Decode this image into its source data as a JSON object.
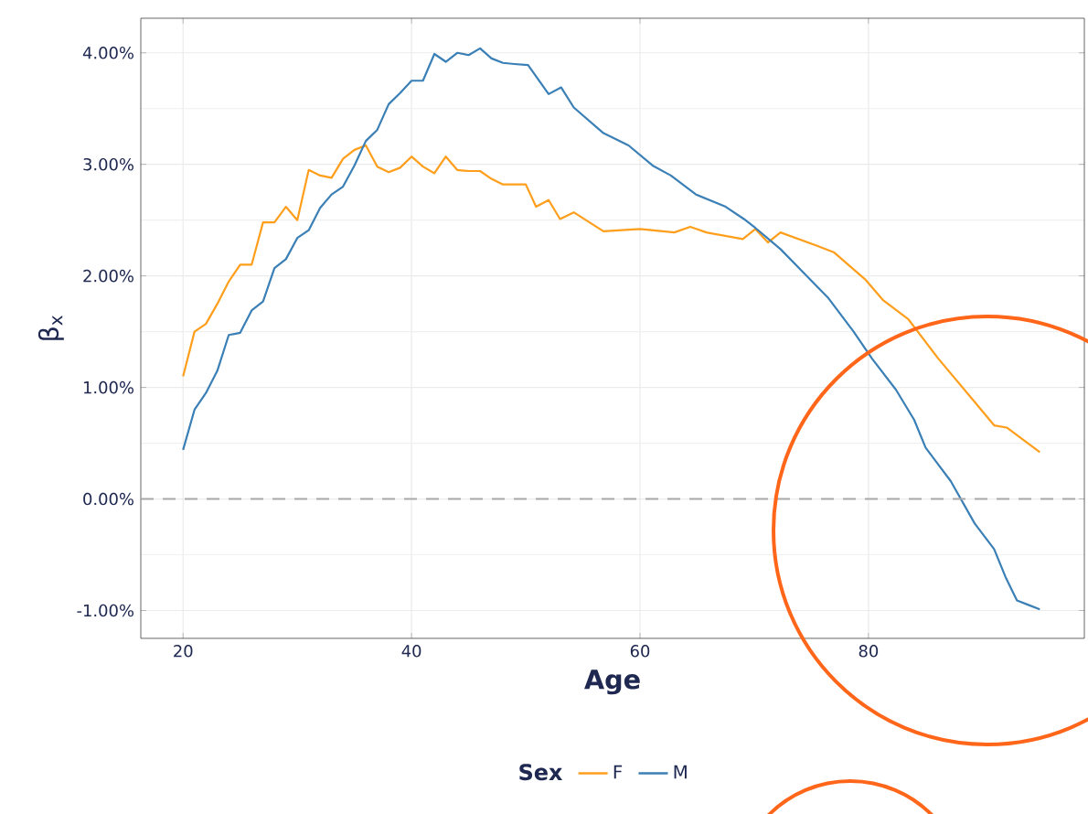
{
  "chart_data": {
    "type": "line",
    "xlabel": "Age",
    "ylabel": "β$_{x}$",
    "legend_title": "Sex",
    "xlim": [
      16.3,
      98.9
    ],
    "ylim": [
      -1.25,
      4.31
    ],
    "xticks": [
      20,
      40,
      60,
      80
    ],
    "yticks": [
      {
        "value": -1,
        "label": "-1.00%"
      },
      {
        "value": 0,
        "label": "0.00%"
      },
      {
        "value": 1,
        "label": "1.00%"
      },
      {
        "value": 2,
        "label": "2.00%"
      },
      {
        "value": 3,
        "label": "3.00%"
      },
      {
        "value": 4,
        "label": "4.00%"
      }
    ],
    "grid": true,
    "legend": "bottom",
    "line_style": "solid",
    "marker": "none",
    "ref_lines": [
      {
        "axis": "y",
        "value": 0,
        "color": "#a9a9a9",
        "line_style": "dashed"
      }
    ],
    "series": [
      {
        "name": "F",
        "color": "#ff9e1b",
        "x": [
          20,
          21,
          22,
          23,
          24,
          25,
          26,
          27,
          28,
          29,
          30,
          31,
          32,
          33,
          34,
          35,
          36,
          37,
          38,
          39,
          40,
          41,
          42,
          43,
          44,
          45,
          46,
          47,
          48,
          49,
          50,
          50.9,
          52,
          53,
          54.2,
          56.8,
          60,
          63,
          64.4,
          65.8,
          69,
          70.1,
          71.2,
          72.3,
          75.5,
          77,
          79.7,
          81.3,
          83.5,
          86.1,
          89.3,
          91,
          92.1,
          95
        ],
        "values": [
          1.1,
          1.5,
          1.57,
          1.75,
          1.95,
          2.1,
          2.1,
          2.48,
          2.48,
          2.62,
          2.5,
          2.95,
          2.9,
          2.88,
          3.05,
          3.13,
          3.17,
          2.98,
          2.93,
          2.97,
          3.07,
          2.98,
          2.92,
          3.07,
          2.95,
          2.94,
          2.94,
          2.87,
          2.82,
          2.82,
          2.82,
          2.62,
          2.68,
          2.51,
          2.57,
          2.4,
          2.42,
          2.39,
          2.44,
          2.39,
          2.33,
          2.42,
          2.3,
          2.39,
          2.27,
          2.21,
          1.97,
          1.78,
          1.61,
          1.26,
          0.87,
          0.66,
          0.64,
          0.42
        ]
      },
      {
        "name": "M",
        "color": "#3a7fb5",
        "x": [
          20,
          21,
          22,
          23,
          24,
          25,
          26,
          27,
          28,
          29,
          30,
          31,
          32,
          33,
          34,
          35,
          36,
          37,
          38,
          39,
          40,
          41,
          42,
          43,
          44,
          45,
          46,
          47,
          48,
          49,
          50.2,
          52,
          53.1,
          54.2,
          56.8,
          59,
          61.1,
          62.7,
          64.9,
          67.5,
          69.1,
          70.1,
          72.3,
          74.4,
          76.5,
          78.7,
          80.3,
          82.4,
          84,
          85,
          87.2,
          89.3,
          91,
          92,
          93,
          94,
          95
        ],
        "values": [
          0.44,
          0.8,
          0.95,
          1.15,
          1.47,
          1.49,
          1.69,
          1.77,
          2.07,
          2.15,
          2.34,
          2.41,
          2.61,
          2.73,
          2.8,
          2.99,
          3.21,
          3.31,
          3.54,
          3.64,
          3.75,
          3.75,
          3.99,
          3.92,
          4.0,
          3.98,
          4.04,
          3.95,
          3.91,
          3.9,
          3.89,
          3.63,
          3.69,
          3.51,
          3.28,
          3.17,
          2.99,
          2.9,
          2.73,
          2.62,
          2.51,
          2.43,
          2.24,
          2.02,
          1.8,
          1.5,
          1.26,
          0.98,
          0.71,
          0.46,
          0.16,
          -0.22,
          -0.45,
          -0.7,
          -0.91,
          -0.95,
          -0.99
        ]
      }
    ]
  }
}
